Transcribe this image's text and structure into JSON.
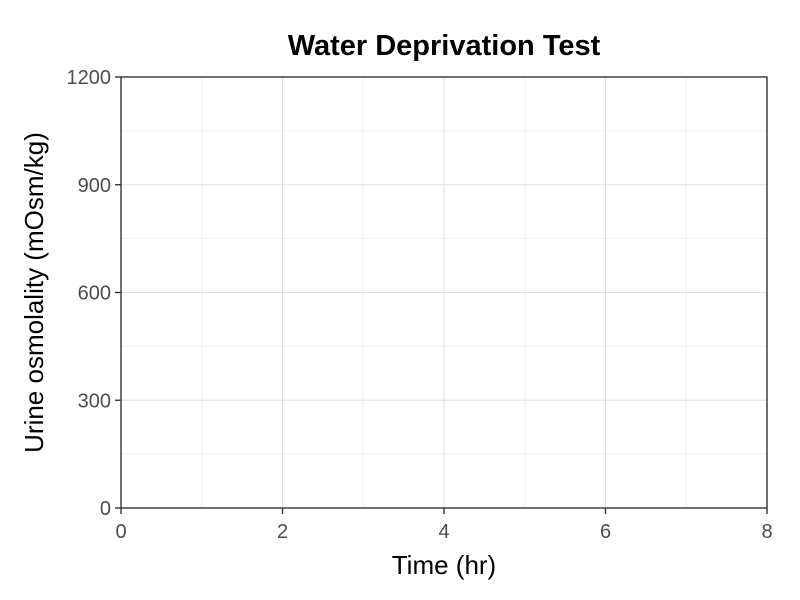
{
  "chart_data": {
    "type": "line",
    "title": "Water Deprivation Test",
    "xlabel": "Time (hr)",
    "ylabel": "Urine osmolality (mOsm/kg)",
    "xlim": [
      0,
      8
    ],
    "ylim": [
      0,
      1200
    ],
    "x_ticks": [
      0,
      2,
      4,
      6,
      8
    ],
    "y_ticks": [
      0,
      300,
      600,
      900,
      1200
    ],
    "x_minor_ticks": [
      1,
      3,
      5,
      7
    ],
    "y_minor_ticks": [
      150,
      450,
      750,
      1050
    ],
    "grid": true,
    "series": []
  }
}
